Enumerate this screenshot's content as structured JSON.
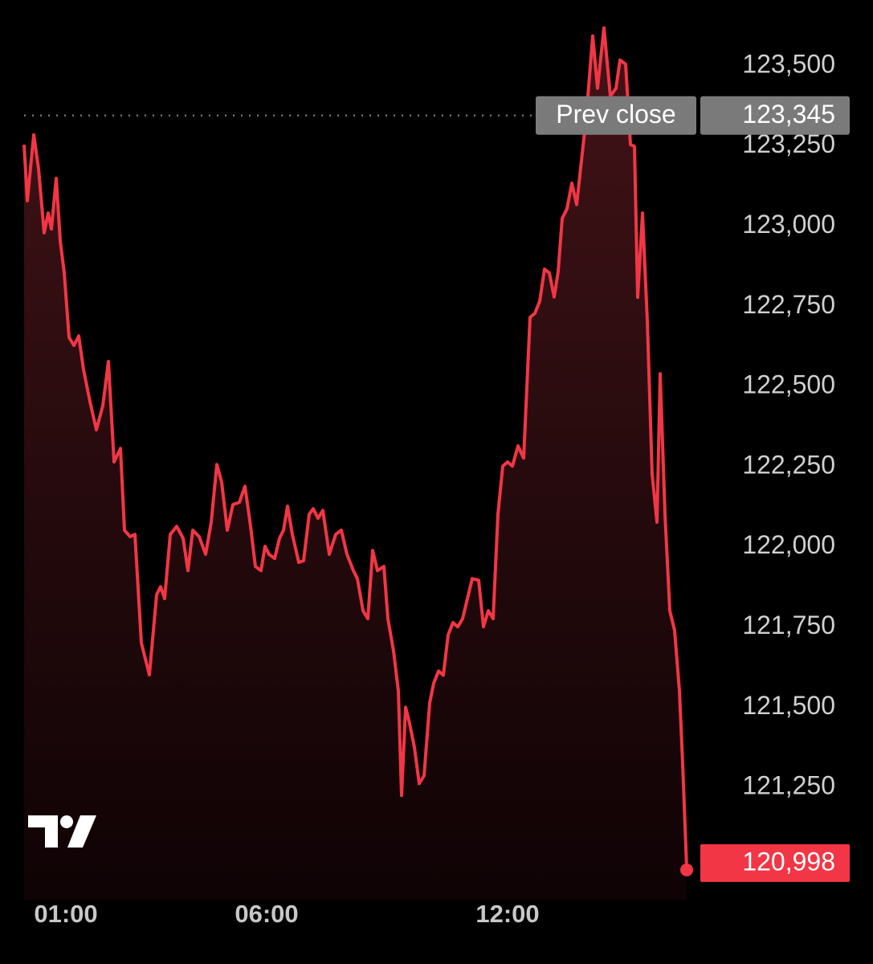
{
  "chart_data": {
    "type": "line",
    "color": "#f23645",
    "x": [
      -0.04,
      0.04,
      0.2,
      0.32,
      0.46,
      0.56,
      0.64,
      0.76,
      0.86,
      0.96,
      1.08,
      1.2,
      1.32,
      1.44,
      1.6,
      1.76,
      1.92,
      2.06,
      2.2,
      2.36,
      2.46,
      2.6,
      2.72,
      2.88,
      3.08,
      3.26,
      3.36,
      3.46,
      3.6,
      3.76,
      3.92,
      4.04,
      4.16,
      4.32,
      4.48,
      4.62,
      4.76,
      4.88,
      5.02,
      5.16,
      5.32,
      5.46,
      5.6,
      5.72,
      5.86,
      5.96,
      6.06,
      6.2,
      6.32,
      6.42,
      6.52,
      6.64,
      6.8,
      6.92,
      7.06,
      7.16,
      7.28,
      7.4,
      7.56,
      7.72,
      7.86,
      8,
      8.16,
      8.26,
      8.4,
      8.52,
      8.64,
      8.76,
      8.92,
      9.02,
      9.16,
      9.28,
      9.36,
      9.46,
      9.56,
      9.68,
      9.8,
      9.92,
      10.06,
      10.16,
      10.28,
      10.4,
      10.52,
      10.64,
      10.76,
      10.88,
      11,
      11.12,
      11.28,
      11.4,
      11.52,
      11.64,
      11.76,
      11.88,
      12,
      12.12,
      12.26,
      12.4,
      12.56,
      12.68,
      12.8,
      12.92,
      13.04,
      13.16,
      13.26,
      13.36,
      13.48,
      13.6,
      13.72,
      13.84,
      13.96,
      14.12,
      14.24,
      14.4,
      14.56,
      14.7,
      14.8,
      14.94,
      15.06,
      15.16,
      15.24,
      15.36,
      15.48,
      15.6,
      15.72,
      15.8,
      15.92,
      16.04,
      16.16,
      16.28,
      16.36,
      16.46
    ],
    "values": [
      123254,
      123079,
      123285,
      123179,
      122979,
      123041,
      122991,
      123149,
      122954,
      122854,
      122653,
      122628,
      122658,
      122553,
      122453,
      122365,
      122440,
      122578,
      122265,
      122307,
      122052,
      122032,
      122039,
      121701,
      121601,
      121851,
      121876,
      121839,
      122039,
      122064,
      122027,
      121926,
      122052,
      122032,
      121977,
      122077,
      122257,
      122202,
      122052,
      122132,
      122139,
      122189,
      122064,
      121939,
      121926,
      122002,
      121977,
      121964,
      122027,
      122052,
      122127,
      122039,
      121952,
      121957,
      122102,
      122119,
      122089,
      122114,
      121977,
      122039,
      122052,
      121977,
      121926,
      121901,
      121801,
      121776,
      121989,
      121926,
      121939,
      121776,
      121676,
      121551,
      121225,
      121500,
      121450,
      121375,
      121262,
      121287,
      121513,
      121575,
      121613,
      121600,
      121726,
      121764,
      121751,
      121776,
      121839,
      121901,
      121896,
      121751,
      121801,
      121776,
      122102,
      122252,
      122265,
      122252,
      122315,
      122277,
      122716,
      122728,
      122766,
      122866,
      122854,
      122779,
      122859,
      123024,
      123054,
      123134,
      123067,
      123204,
      123342,
      123593,
      123430,
      123618,
      123405,
      123430,
      123518,
      123505,
      123254,
      123249,
      122778,
      123041,
      122703,
      122227,
      122077,
      122540,
      122102,
      121801,
      121739,
      121551,
      121325,
      120998
    ],
    "xlim": [
      -0.04,
      16.46
    ],
    "xticks": [
      {
        "value": 1,
        "label": "01:00"
      },
      {
        "value": 6,
        "label": "06:00"
      },
      {
        "value": 12,
        "label": "12:00"
      }
    ],
    "ylim": [
      120900,
      123700
    ],
    "yticks": [
      {
        "value": 123500,
        "label": "123,500"
      },
      {
        "value": 123250,
        "label": "123,250"
      },
      {
        "value": 123000,
        "label": "123,000"
      },
      {
        "value": 122750,
        "label": "122,750"
      },
      {
        "value": 122500,
        "label": "122,500"
      },
      {
        "value": 122250,
        "label": "122,250"
      },
      {
        "value": 122000,
        "label": "122,000"
      },
      {
        "value": 121750,
        "label": "121,750"
      },
      {
        "value": 121500,
        "label": "121,500"
      },
      {
        "value": 121250,
        "label": "121,250"
      }
    ],
    "prev_close": {
      "value": 123345,
      "label": "123,345",
      "text": "Prev close"
    },
    "last_price": {
      "value": 120998,
      "label": "120,998"
    }
  }
}
